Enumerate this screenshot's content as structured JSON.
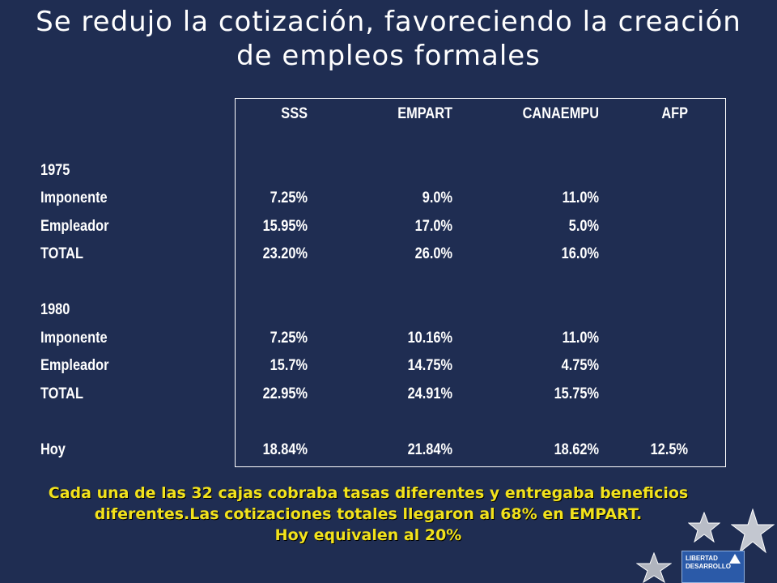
{
  "title": {
    "line1": "Se redujo la cotización, favoreciendo la creación",
    "line2": "de empleos formales"
  },
  "table": {
    "headers": [
      "SSS",
      "EMPART",
      "CANAEMPU",
      "AFP"
    ],
    "rows": [
      {
        "label": "1975",
        "values": [
          "",
          "",
          "",
          ""
        ]
      },
      {
        "label": "Imponente",
        "values": [
          "7.25%",
          "9.0%",
          "11.0%",
          ""
        ]
      },
      {
        "label": "Empleador",
        "values": [
          "15.95%",
          "17.0%",
          "5.0%",
          ""
        ]
      },
      {
        "label": "TOTAL",
        "values": [
          "23.20%",
          "26.0%",
          "16.0%",
          ""
        ]
      },
      {
        "label": "1980",
        "values": [
          "",
          "",
          "",
          ""
        ]
      },
      {
        "label": "Imponente",
        "values": [
          "7.25%",
          "10.16%",
          "11.0%",
          ""
        ]
      },
      {
        "label": "Empleador",
        "values": [
          "15.7%",
          "14.75%",
          "4.75%",
          ""
        ]
      },
      {
        "label": "TOTAL",
        "values": [
          "22.95%",
          "24.91%",
          "15.75%",
          ""
        ]
      },
      {
        "label": "Hoy",
        "values": [
          "18.84%",
          "21.84%",
          "18.62%",
          "12.5%"
        ]
      }
    ]
  },
  "footer": {
    "line1": "Cada una de las 32 cajas cobraba tasas diferentes y entregaba beneficios",
    "line2": "diferentes.Las cotizaciones totales llegaron al 68% en EMPART.",
    "line3": "Hoy equivalen al 20%"
  },
  "logo": {
    "line1": "LIBERTAD",
    "line2": "DESARROLLO"
  },
  "decorations": {
    "icons": [
      "star-icon",
      "star-icon",
      "star-icon"
    ]
  },
  "colors": {
    "background": "#1f2d52",
    "text": "#ffffff",
    "footer_text": "#f2e21c"
  }
}
